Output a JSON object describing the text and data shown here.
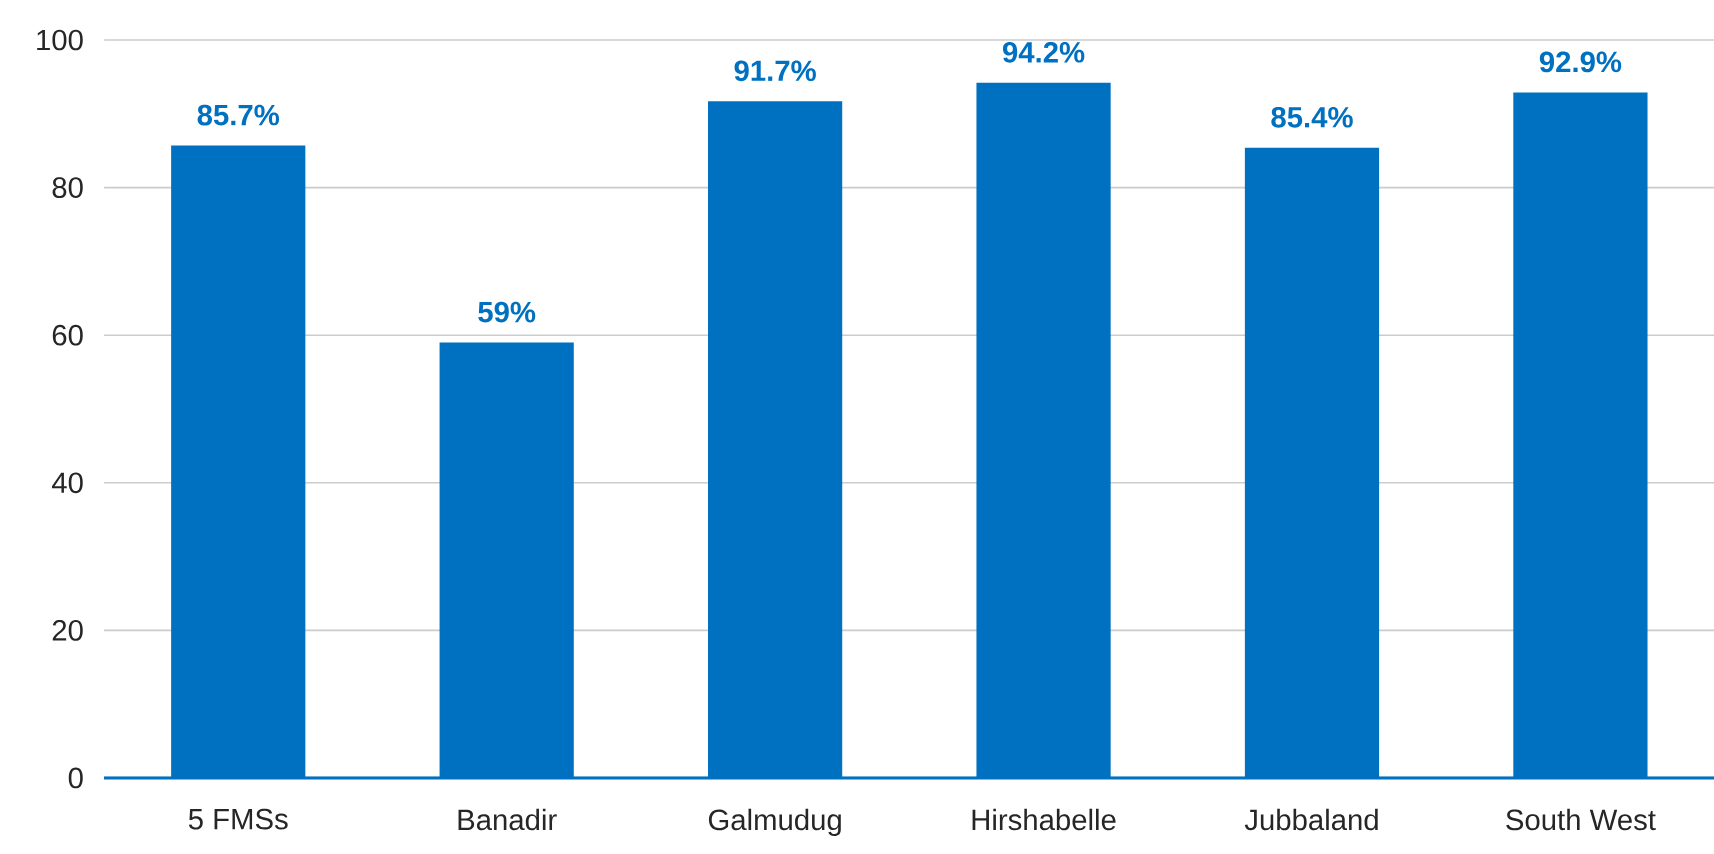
{
  "chart_data": {
    "type": "bar",
    "categories": [
      "5 FMSs",
      "Banadir",
      "Galmudug",
      "Hirshabelle",
      "Jubbaland",
      "South West"
    ],
    "values": [
      85.7,
      59,
      91.7,
      94.2,
      85.4,
      92.9
    ],
    "value_labels": [
      "85.7%",
      "59%",
      "91.7%",
      "94.2%",
      "85.4%",
      "92.9%"
    ],
    "color": "#0070c0",
    "ylim": [
      0,
      100
    ],
    "yticks": [
      0,
      20,
      40,
      60,
      80,
      100
    ],
    "grid": "y"
  }
}
